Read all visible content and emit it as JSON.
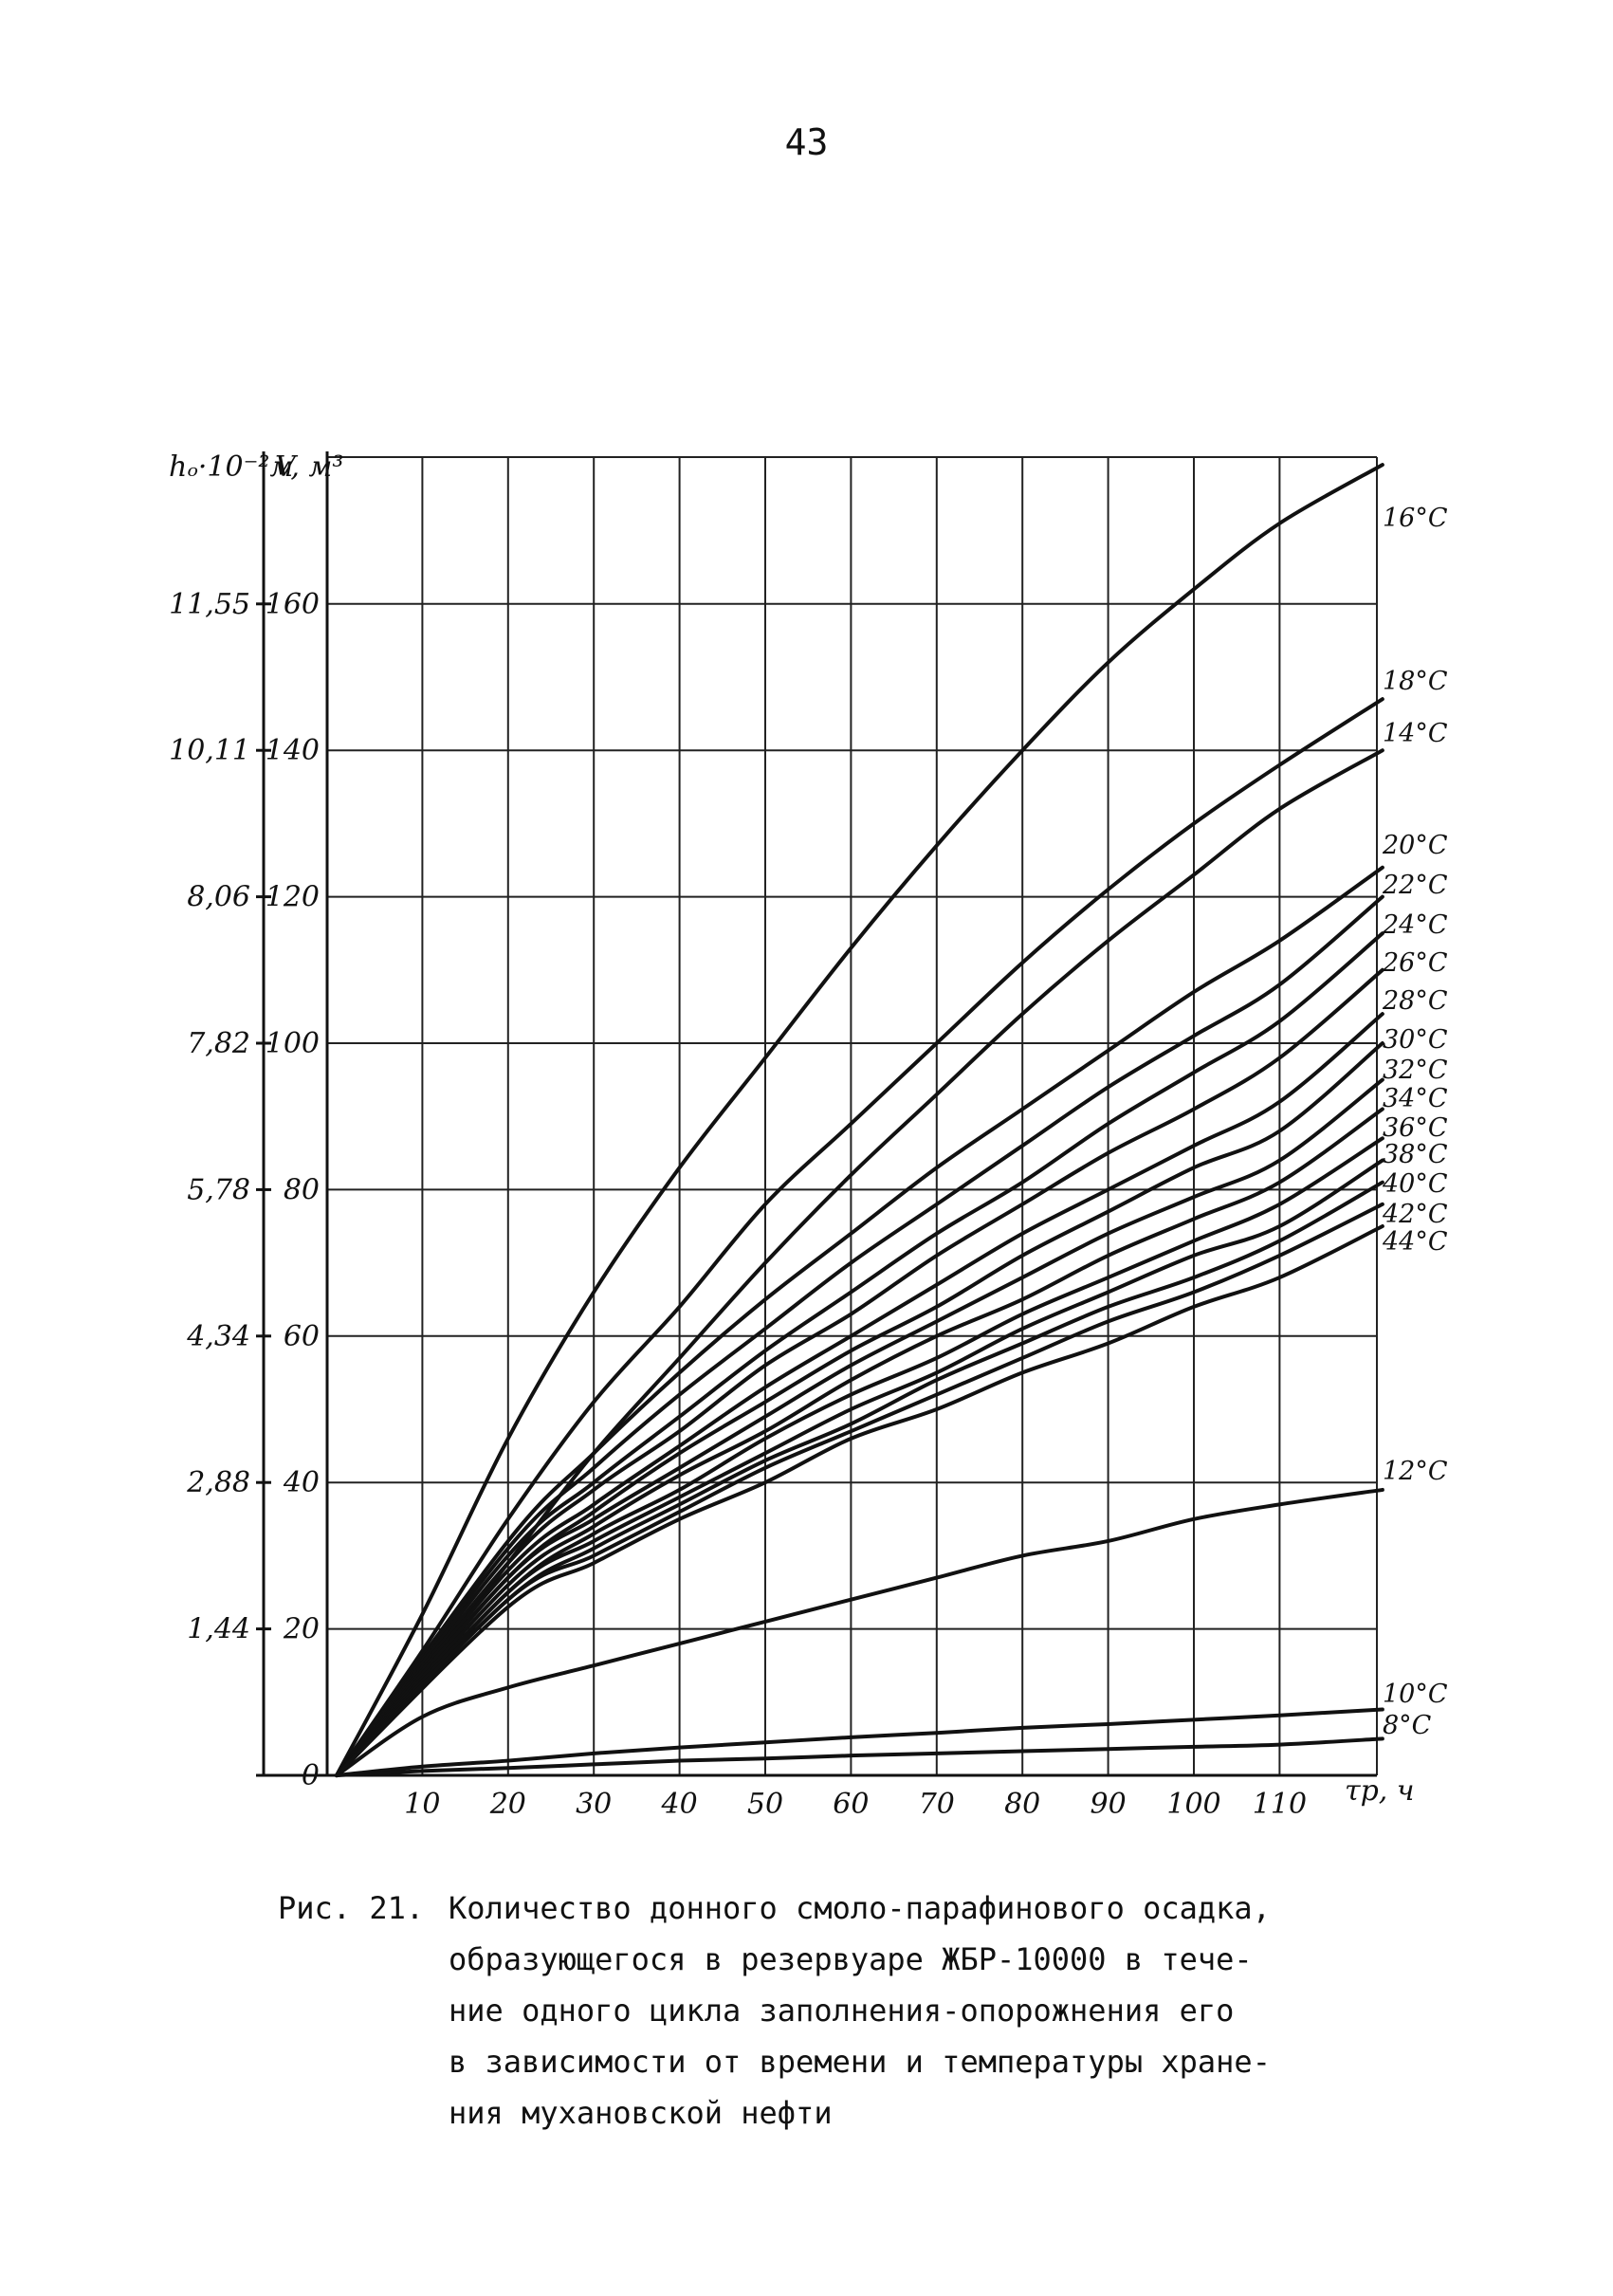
{
  "page_number": "43",
  "caption": {
    "prefix": "Рис. 21.",
    "lines": [
      "Количество донного смоло-парафинового осадка,",
      "образующегося в резервуаре ЖБР-10000 в тече-",
      "ние одного цикла заполнения-опорожнения его",
      "в зависимости от времени и температуры хране-",
      "ния мухановской нефти"
    ]
  },
  "chart_data": {
    "type": "line",
    "title": "",
    "xlabel": "τр, ч",
    "ylabel": "V, м³",
    "ylabel_secondary": "hₒ·10⁻²м",
    "xlim": [
      0,
      122
    ],
    "ylim": [
      0,
      180
    ],
    "x_ticks": [
      10,
      20,
      30,
      40,
      50,
      60,
      70,
      80,
      90,
      100,
      110
    ],
    "y_ticks": [
      0,
      20,
      40,
      60,
      80,
      100,
      120,
      140,
      160
    ],
    "y_tick_labels": [
      "0",
      "20",
      "40",
      "60",
      "80",
      "100",
      "120",
      "140",
      "160"
    ],
    "y2_tick_labels": [
      "",
      "1,44",
      "2,88",
      "4,34",
      "5,78",
      "7,82",
      "8,06",
      "10,11",
      "11,55"
    ],
    "grid": true,
    "series": [
      {
        "name": "16°С",
        "x": [
          0,
          10,
          20,
          30,
          40,
          50,
          60,
          70,
          80,
          90,
          100,
          110,
          122
        ],
        "y": [
          0,
          22,
          46,
          66,
          83,
          98,
          113,
          127,
          140,
          152,
          162,
          171,
          179
        ]
      },
      {
        "name": "18°С",
        "x": [
          0,
          10,
          20,
          30,
          40,
          50,
          60,
          70,
          80,
          90,
          100,
          110,
          122
        ],
        "y": [
          0,
          17,
          35,
          51,
          64,
          78,
          89,
          100,
          111,
          121,
          130,
          138,
          147
        ]
      },
      {
        "name": "14°С",
        "x": [
          0,
          10,
          20,
          30,
          40,
          50,
          60,
          70,
          80,
          90,
          100,
          110,
          122
        ],
        "y": [
          0,
          14,
          29,
          44,
          57,
          70,
          82,
          93,
          104,
          114,
          123,
          132,
          140
        ]
      },
      {
        "name": "20°С",
        "x": [
          0,
          20,
          30,
          40,
          50,
          60,
          70,
          80,
          90,
          100,
          110,
          122
        ],
        "y": [
          0,
          32,
          44,
          55,
          65,
          74,
          83,
          91,
          99,
          107,
          114,
          124
        ]
      },
      {
        "name": "22°С",
        "x": [
          0,
          20,
          30,
          40,
          50,
          60,
          70,
          80,
          90,
          100,
          110,
          122
        ],
        "y": [
          0,
          31,
          42,
          52,
          61,
          70,
          78,
          86,
          94,
          101,
          108,
          120
        ]
      },
      {
        "name": "24°С",
        "x": [
          0,
          20,
          30,
          40,
          50,
          60,
          70,
          80,
          90,
          100,
          110,
          122
        ],
        "y": [
          0,
          30,
          40,
          49,
          58,
          66,
          74,
          81,
          89,
          96,
          103,
          115
        ]
      },
      {
        "name": "26°С",
        "x": [
          0,
          20,
          30,
          40,
          50,
          60,
          70,
          80,
          90,
          100,
          110,
          122
        ],
        "y": [
          0,
          29,
          39,
          47,
          56,
          63,
          71,
          78,
          85,
          91,
          98,
          110
        ]
      },
      {
        "name": "28°С",
        "x": [
          0,
          20,
          30,
          40,
          50,
          60,
          70,
          80,
          90,
          100,
          110,
          122
        ],
        "y": [
          0,
          28,
          37,
          45,
          53,
          60,
          67,
          74,
          80,
          86,
          92,
          104
        ]
      },
      {
        "name": "30°С",
        "x": [
          0,
          20,
          30,
          40,
          50,
          60,
          70,
          80,
          90,
          100,
          110,
          122
        ],
        "y": [
          0,
          27,
          36,
          44,
          51,
          58,
          64,
          71,
          77,
          83,
          88,
          100
        ]
      },
      {
        "name": "32°С",
        "x": [
          0,
          20,
          30,
          40,
          50,
          60,
          70,
          80,
          90,
          100,
          110,
          122
        ],
        "y": [
          0,
          27,
          35,
          42,
          49,
          56,
          62,
          68,
          74,
          79,
          84,
          95
        ]
      },
      {
        "name": "34°С",
        "x": [
          0,
          20,
          30,
          40,
          50,
          60,
          70,
          80,
          90,
          100,
          110,
          122
        ],
        "y": [
          0,
          26,
          34,
          41,
          47,
          54,
          60,
          65,
          71,
          76,
          81,
          91
        ]
      },
      {
        "name": "36°С",
        "x": [
          0,
          20,
          30,
          40,
          50,
          60,
          70,
          80,
          90,
          100,
          110,
          122
        ],
        "y": [
          0,
          25,
          33,
          39,
          46,
          52,
          57,
          63,
          68,
          73,
          78,
          87
        ]
      },
      {
        "name": "38°С",
        "x": [
          0,
          20,
          30,
          40,
          50,
          60,
          70,
          80,
          90,
          100,
          110,
          122
        ],
        "y": [
          0,
          25,
          32,
          38,
          44,
          50,
          55,
          61,
          66,
          71,
          75,
          84
        ]
      },
      {
        "name": "40°С",
        "x": [
          0,
          20,
          30,
          40,
          50,
          60,
          70,
          80,
          90,
          100,
          110,
          122
        ],
        "y": [
          0,
          24,
          31,
          37,
          43,
          48,
          54,
          59,
          64,
          68,
          73,
          81
        ]
      },
      {
        "name": "42°С",
        "x": [
          0,
          20,
          30,
          40,
          50,
          60,
          70,
          80,
          90,
          100,
          110,
          122
        ],
        "y": [
          0,
          24,
          30,
          36,
          42,
          47,
          52,
          57,
          62,
          66,
          71,
          78
        ]
      },
      {
        "name": "44°С",
        "x": [
          0,
          20,
          30,
          40,
          50,
          60,
          70,
          80,
          90,
          100,
          110,
          122
        ],
        "y": [
          0,
          23,
          29,
          35,
          40,
          46,
          50,
          55,
          59,
          64,
          68,
          75
        ]
      },
      {
        "name": "12°С",
        "x": [
          0,
          10,
          20,
          30,
          40,
          50,
          60,
          70,
          80,
          90,
          100,
          110,
          122
        ],
        "y": [
          0,
          8,
          12,
          15,
          18,
          21,
          24,
          27,
          30,
          32,
          35,
          37,
          39
        ]
      },
      {
        "name": "10°С",
        "x": [
          0,
          10,
          20,
          30,
          40,
          50,
          60,
          70,
          80,
          90,
          100,
          110,
          122
        ],
        "y": [
          0,
          1.2,
          2,
          3,
          3.8,
          4.5,
          5.2,
          5.8,
          6.5,
          7,
          7.6,
          8.2,
          9
        ]
      },
      {
        "name": "8°С",
        "x": [
          0,
          10,
          20,
          30,
          40,
          50,
          60,
          70,
          80,
          90,
          100,
          110,
          122
        ],
        "y": [
          0,
          0.6,
          1,
          1.5,
          2,
          2.3,
          2.7,
          3,
          3.3,
          3.6,
          3.9,
          4.2,
          5
        ]
      }
    ]
  }
}
